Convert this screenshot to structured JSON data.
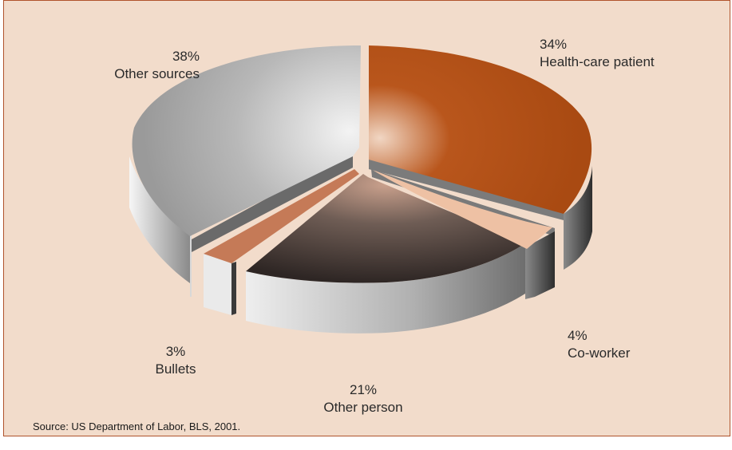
{
  "chart_data": {
    "type": "pie",
    "style": "3d-exploded",
    "slices": [
      {
        "label": "Health-care patient",
        "value": 34,
        "value_label": "34%",
        "color": "#b04d14"
      },
      {
        "label": "Co-worker",
        "value": 4,
        "value_label": "4%",
        "color": "#e9b99c"
      },
      {
        "label": "Other person",
        "value": 21,
        "value_label": "21%",
        "color": "#5a4a44"
      },
      {
        "label": "Bullets",
        "value": 3,
        "value_label": "3%",
        "color": "#c87b55"
      },
      {
        "label": "Other sources",
        "value": 38,
        "value_label": "38%",
        "color": "#b4b4b4"
      }
    ],
    "source": "Source: US Department of Labor, BLS, 2001."
  }
}
